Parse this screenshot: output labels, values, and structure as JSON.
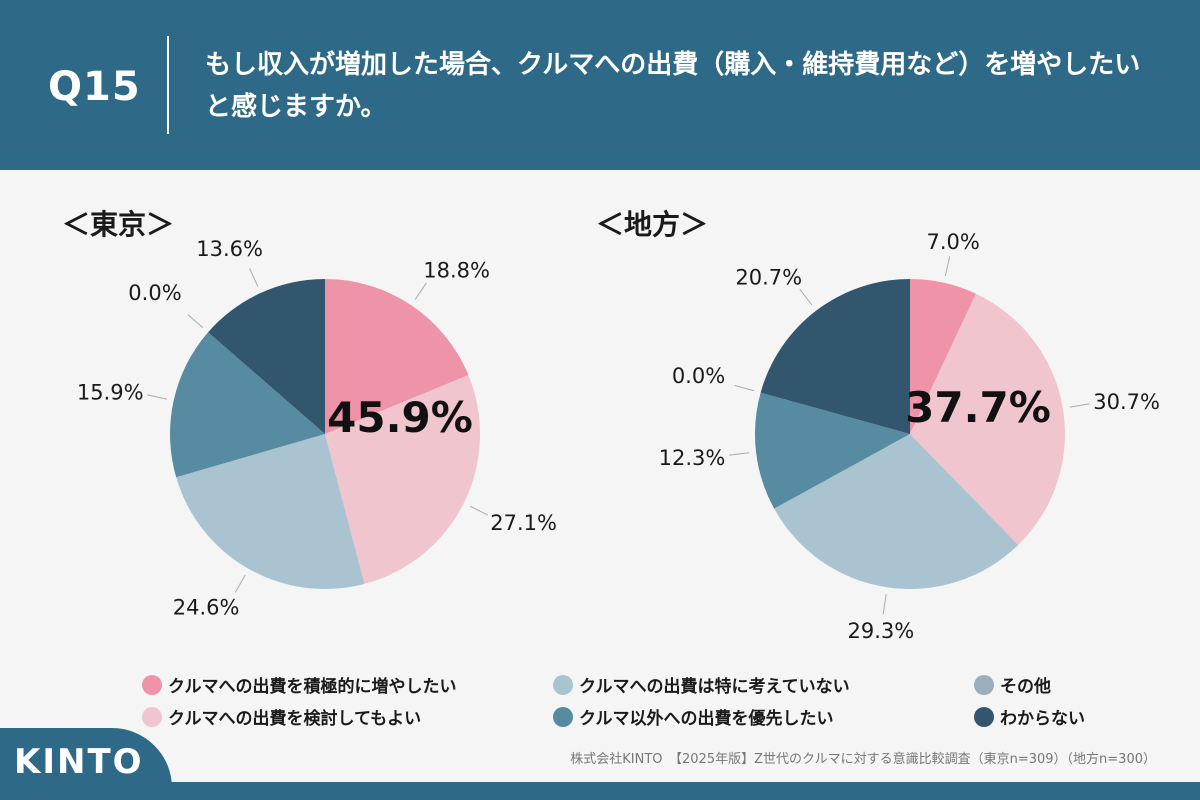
{
  "question": {
    "number": "Q15",
    "text": "もし収入が増加した場合、クルマへの出費（購入・維持費用など）を増やしたいと感じますか。"
  },
  "colors": {
    "header_bg": "#2e6a88",
    "panel_bg": "#f5f5f5",
    "categories": [
      "#ef93a8",
      "#f0c5cd",
      "#a9c4d0",
      "#578ba1",
      "#9aaebb",
      "#33566f"
    ]
  },
  "legend": {
    "items": [
      {
        "label": "クルマへの出費を積極的に増やしたい",
        "color": "#ef93a8"
      },
      {
        "label": "クルマへの出費を検討してもよい",
        "color": "#f0c5cd"
      },
      {
        "label": "クルマへの出費は特に考えていない",
        "color": "#a9c4d0"
      },
      {
        "label": "クルマ以外への出費を優先したい",
        "color": "#578ba1"
      },
      {
        "label": "その他",
        "color": "#9aaebb"
      },
      {
        "label": "わからない",
        "color": "#33566f"
      }
    ]
  },
  "source": "株式会社KINTO　【2025年版】Z世代のクルマに対する意識比較調査（東京n=309）（地方n=300）",
  "logo": {
    "text": "KINTO"
  },
  "chart_data": [
    {
      "type": "pie",
      "title": "＜東京＞",
      "center_label": "45.9%",
      "categories": [
        "クルマへの出費を積極的に増やしたい",
        "クルマへの出費を検討してもよい",
        "クルマへの出費は特に考えていない",
        "クルマ以外への出費を優先したい",
        "その他",
        "わからない"
      ],
      "values": [
        18.8,
        27.1,
        24.6,
        15.9,
        0.0,
        13.6
      ],
      "labels": [
        "18.8%",
        "27.1%",
        "24.6%",
        "15.9%",
        "0.0%",
        "13.6%"
      ]
    },
    {
      "type": "pie",
      "title": "＜地方＞",
      "center_label": "37.7%",
      "categories": [
        "クルマへの出費を積極的に増やしたい",
        "クルマへの出費を検討してもよい",
        "クルマへの出費は特に考えていない",
        "クルマ以外への出費を優先したい",
        "その他",
        "わからない"
      ],
      "values": [
        7.0,
        30.7,
        29.3,
        12.3,
        0.0,
        20.7
      ],
      "labels": [
        "7.0%",
        "30.7%",
        "29.3%",
        "12.3%",
        "0.0%",
        "20.7%"
      ]
    }
  ]
}
